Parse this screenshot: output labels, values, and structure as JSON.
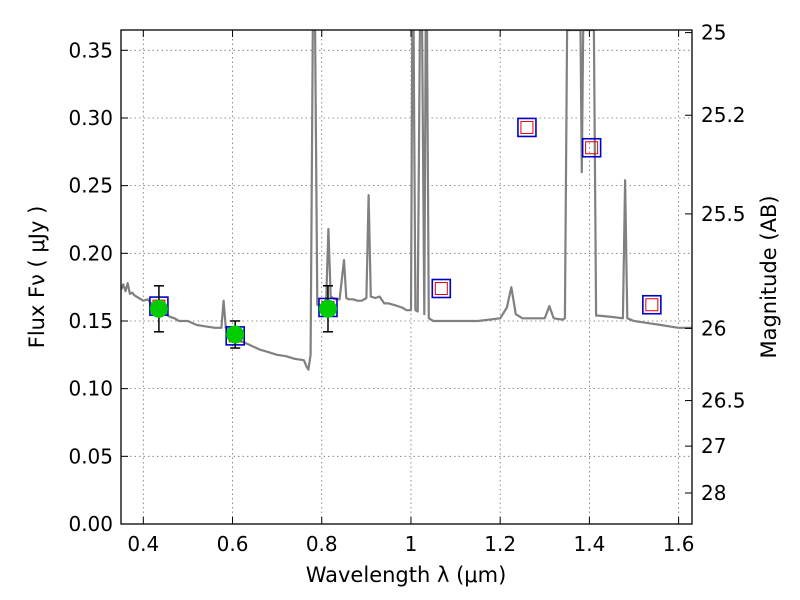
{
  "chart_data": {
    "type": "scatter",
    "xlabel": "Wavelength  λ (μm)",
    "ylabel": "Flux  Fν  ( μJy )",
    "y2label": "Magnitude (AB)",
    "xlim": [
      0.35,
      1.63
    ],
    "ylim": [
      0.0,
      0.365
    ],
    "grid": true,
    "x_ticks": [
      "0.4",
      "0.6",
      "0.8",
      "1",
      "1.2",
      "1.4",
      "1.6"
    ],
    "x_tick_values": [
      0.4,
      0.6,
      0.8,
      1.0,
      1.2,
      1.4,
      1.6
    ],
    "y_ticks": [
      "0.00",
      "0.05",
      "0.10",
      "0.15",
      "0.20",
      "0.25",
      "0.30",
      "0.35"
    ],
    "y_tick_values": [
      0.0,
      0.05,
      0.1,
      0.15,
      0.2,
      0.25,
      0.3,
      0.35
    ],
    "mag_ticks": [
      "25",
      "25.2",
      "25.5",
      "26",
      "26.5",
      "27",
      "28"
    ],
    "mag_tick_values": [
      25,
      25.2,
      25.5,
      26,
      26.5,
      27,
      28
    ],
    "series": [
      {
        "kind": "model-sed-line",
        "color": "#808080",
        "x": [
          0.35,
          0.355,
          0.36,
          0.365,
          0.37,
          0.375,
          0.38,
          0.39,
          0.4,
          0.41,
          0.42,
          0.43,
          0.44,
          0.45,
          0.46,
          0.47,
          0.48,
          0.5,
          0.52,
          0.54,
          0.56,
          0.575,
          0.58,
          0.585,
          0.59,
          0.595,
          0.6,
          0.62,
          0.64,
          0.66,
          0.68,
          0.7,
          0.72,
          0.74,
          0.76,
          0.765,
          0.77,
          0.775,
          0.78,
          0.785,
          0.79,
          0.8,
          0.81,
          0.815,
          0.82,
          0.83,
          0.84,
          0.85,
          0.855,
          0.86,
          0.87,
          0.88,
          0.89,
          0.9,
          0.905,
          0.91,
          0.92,
          0.93,
          0.94,
          0.95,
          0.96,
          0.97,
          0.98,
          0.99,
          1.0,
          1.003,
          1.006,
          1.01,
          1.015,
          1.02,
          1.025,
          1.03,
          1.033,
          1.036,
          1.04,
          1.05,
          1.08,
          1.1,
          1.15,
          1.2,
          1.215,
          1.225,
          1.235,
          1.25,
          1.28,
          1.3,
          1.31,
          1.32,
          1.34,
          1.345,
          1.35,
          1.36,
          1.37,
          1.38,
          1.383,
          1.386,
          1.39,
          1.395,
          1.4,
          1.41,
          1.415,
          1.42,
          1.45,
          1.475,
          1.48,
          1.485,
          1.5,
          1.52,
          1.54,
          1.56,
          1.58,
          1.6,
          1.63
        ],
        "y": [
          0.173,
          0.177,
          0.172,
          0.178,
          0.17,
          0.171,
          0.169,
          0.167,
          0.165,
          0.166,
          0.162,
          0.16,
          0.157,
          0.155,
          0.153,
          0.152,
          0.15,
          0.15,
          0.147,
          0.146,
          0.145,
          0.145,
          0.165,
          0.145,
          0.144,
          0.143,
          0.14,
          0.135,
          0.132,
          0.129,
          0.127,
          0.125,
          0.124,
          0.122,
          0.121,
          0.117,
          0.114,
          0.125,
          0.365,
          0.365,
          0.162,
          0.161,
          0.166,
          0.218,
          0.168,
          0.166,
          0.166,
          0.195,
          0.167,
          0.166,
          0.166,
          0.165,
          0.165,
          0.167,
          0.243,
          0.168,
          0.167,
          0.168,
          0.163,
          0.163,
          0.162,
          0.161,
          0.16,
          0.158,
          0.158,
          0.365,
          0.365,
          0.158,
          0.157,
          0.365,
          0.365,
          0.155,
          0.365,
          0.365,
          0.152,
          0.15,
          0.15,
          0.15,
          0.15,
          0.152,
          0.16,
          0.175,
          0.155,
          0.152,
          0.152,
          0.152,
          0.161,
          0.152,
          0.151,
          0.152,
          0.365,
          0.365,
          0.365,
          0.365,
          0.26,
          0.365,
          0.365,
          0.365,
          0.365,
          0.365,
          0.154,
          0.154,
          0.153,
          0.152,
          0.254,
          0.152,
          0.15,
          0.149,
          0.148,
          0.147,
          0.146,
          0.145,
          0.145
        ]
      },
      {
        "kind": "observed-photometry",
        "marker": "circle",
        "color": "#00cc00",
        "x": [
          0.435,
          0.606,
          0.814
        ],
        "y": [
          0.159,
          0.14,
          0.159
        ],
        "yerr": [
          0.017,
          0.01,
          0.017
        ]
      },
      {
        "kind": "model-photometry",
        "marker": "open-square",
        "color": "#0000cc",
        "inner_color": "#dd0000",
        "x": [
          0.435,
          0.606,
          0.814,
          1.068,
          1.26,
          1.405,
          1.54
        ],
        "y": [
          0.161,
          0.139,
          0.16,
          0.174,
          0.293,
          0.278,
          0.162
        ]
      }
    ]
  }
}
